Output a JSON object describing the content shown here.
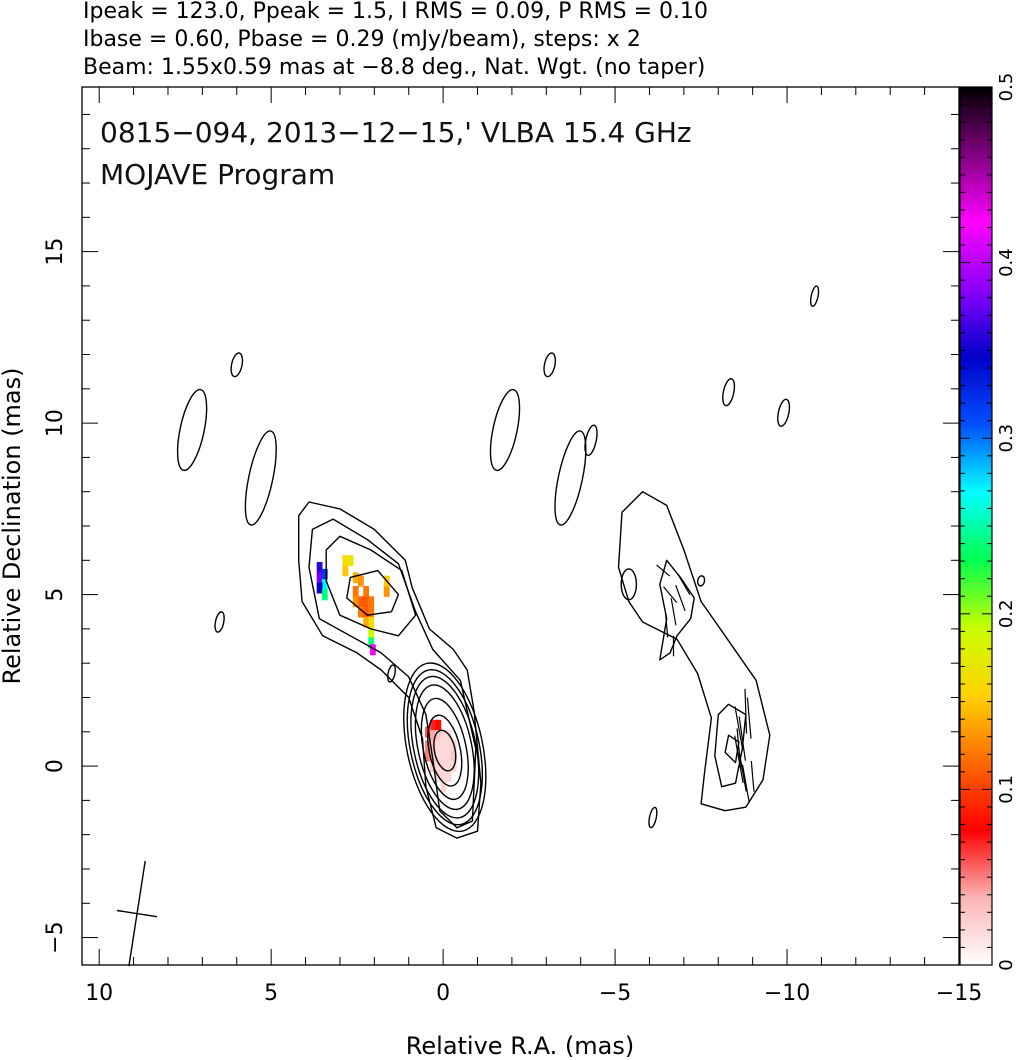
{
  "header": {
    "line1": "Ipeak = 123.0, Ppeak = 1.5, I RMS = 0.09, P RMS = 0.10",
    "line2": "Ibase = 0.60, Pbase = 0.29 (mJy/beam), steps: x 2",
    "line3": "Beam: 1.55x0.59 mas at −8.8 deg., Nat. Wgt. (no taper)"
  },
  "annotation": {
    "source_line": "0815−094, 2013−12−15,' VLBA 15.4 GHz",
    "program_line": "MOJAVE Program"
  },
  "chart_data": {
    "type": "heatmap",
    "xlabel": "Relative R.A. (mas)",
    "ylabel": "Relative Declination (mas)",
    "xlim": [
      10.5,
      -15
    ],
    "ylim": [
      -5.8,
      19.8
    ],
    "xticks": [
      10,
      5,
      0,
      -5,
      -10,
      -15
    ],
    "xtick_labels": [
      "10",
      "5",
      "0",
      "−5",
      "−10",
      "−15"
    ],
    "yticks": [
      -5,
      0,
      5,
      10,
      15
    ],
    "ytick_labels": [
      "−5",
      "0",
      "5",
      "10",
      "15"
    ],
    "colorbar": {
      "range": [
        0,
        0.5
      ],
      "ticks": [
        0,
        0.1,
        0.2,
        0.3,
        0.4,
        0.5
      ],
      "tick_labels": [
        "0",
        "0.1",
        "0.2",
        "0.3",
        "0.4",
        "0.5"
      ],
      "gradient": [
        "#ffffff",
        "#fab4b4",
        "#ff0000",
        "#ff6a00",
        "#ffd200",
        "#c8ff00",
        "#00ff50",
        "#00ffff",
        "#0050ff",
        "#0000c8",
        "#8a00ff",
        "#ff00ff",
        "#800080",
        "#000000"
      ]
    },
    "left_panel": {
      "center_ra": 0,
      "contours_core": [
        {
          "rx": 1.1,
          "ry": 2.5,
          "cx": -0.05,
          "cy": 0.55
        },
        {
          "rx": 1.0,
          "ry": 2.3,
          "cx": -0.05,
          "cy": 0.55
        },
        {
          "rx": 0.9,
          "ry": 2.1,
          "cx": -0.05,
          "cy": 0.55
        },
        {
          "rx": 0.78,
          "ry": 1.85,
          "cx": -0.05,
          "cy": 0.55
        },
        {
          "rx": 0.62,
          "ry": 1.5,
          "cx": -0.05,
          "cy": 0.5
        },
        {
          "rx": 0.45,
          "ry": 1.05,
          "cx": -0.05,
          "cy": 0.45
        },
        {
          "rx": 0.3,
          "ry": 0.6,
          "cx": -0.05,
          "cy": 0.45
        }
      ],
      "outer_contour": [
        [
          -1.0,
          -1.9
        ],
        [
          -1.1,
          -0.5
        ],
        [
          -0.9,
          1.6
        ],
        [
          -0.7,
          2.8
        ],
        [
          -0.3,
          3.4
        ],
        [
          0.4,
          4.0
        ],
        [
          0.9,
          5.2
        ],
        [
          1.1,
          6.0
        ],
        [
          2.0,
          6.9
        ],
        [
          3.0,
          7.5
        ],
        [
          3.9,
          7.7
        ],
        [
          4.2,
          7.3
        ],
        [
          4.2,
          6.0
        ],
        [
          4.1,
          4.8
        ],
        [
          3.5,
          3.8
        ],
        [
          2.5,
          3.3
        ],
        [
          1.8,
          2.8
        ],
        [
          1.0,
          2.0
        ],
        [
          0.6,
          0.8
        ],
        [
          0.5,
          -0.6
        ],
        [
          0.2,
          -1.8
        ],
        [
          -0.4,
          -2.1
        ]
      ],
      "mid_contour": [
        [
          -0.85,
          -1.6
        ],
        [
          -0.95,
          0.5
        ],
        [
          -0.5,
          2.5
        ],
        [
          0.3,
          3.4
        ],
        [
          0.8,
          4.5
        ],
        [
          1.3,
          5.9
        ],
        [
          2.2,
          6.6
        ],
        [
          3.2,
          7.2
        ],
        [
          3.8,
          6.9
        ],
        [
          3.9,
          5.8
        ],
        [
          3.6,
          4.3
        ],
        [
          2.7,
          3.8
        ],
        [
          1.8,
          3.3
        ],
        [
          1.0,
          2.6
        ],
        [
          0.5,
          1.5
        ],
        [
          0.3,
          0.2
        ],
        [
          0.1,
          -1.3
        ],
        [
          -0.4,
          -1.8
        ]
      ],
      "inner_contour": [
        [
          0.8,
          4.4
        ],
        [
          1.2,
          5.7
        ],
        [
          2.1,
          6.3
        ],
        [
          3.0,
          6.7
        ],
        [
          3.4,
          6.3
        ],
        [
          3.4,
          5.4
        ],
        [
          3.0,
          4.4
        ],
        [
          2.1,
          4.0
        ],
        [
          1.3,
          3.8
        ]
      ],
      "innermost_contour": [
        [
          1.3,
          5.0
        ],
        [
          1.9,
          5.7
        ],
        [
          2.7,
          5.5
        ],
        [
          2.8,
          4.9
        ],
        [
          2.2,
          4.4
        ],
        [
          1.5,
          4.5
        ]
      ],
      "islands": [
        [
          6.0,
          11.7,
          0.15,
          0.35
        ],
        [
          7.3,
          9.8,
          0.35,
          1.2
        ],
        [
          5.3,
          8.4,
          0.35,
          1.4
        ],
        [
          6.5,
          4.2,
          0.12,
          0.3
        ],
        [
          1.5,
          2.7,
          0.1,
          0.25
        ]
      ],
      "pol_pixels": [
        {
          "ra": 0.3,
          "dec": 1.2,
          "v": 0.07
        },
        {
          "ra": 0.15,
          "dec": 1.2,
          "v": 0.08
        },
        {
          "ra": 0.45,
          "dec": 1.0,
          "v": 0.06
        },
        {
          "ra": 0.3,
          "dec": 0.9,
          "v": 0.04
        },
        {
          "ra": 0.15,
          "dec": 0.9,
          "v": 0.03
        },
        {
          "ra": 0.0,
          "dec": 0.9,
          "v": 0.02
        },
        {
          "ra": -0.15,
          "dec": 0.9,
          "v": 0.02
        },
        {
          "ra": 0.45,
          "dec": 0.6,
          "v": 0.05
        },
        {
          "ra": 0.3,
          "dec": 0.6,
          "v": 0.03
        },
        {
          "ra": 0.15,
          "dec": 0.6,
          "v": 0.02
        },
        {
          "ra": 0.0,
          "dec": 0.6,
          "v": 0.02
        },
        {
          "ra": -0.15,
          "dec": 0.6,
          "v": 0.02
        },
        {
          "ra": -0.3,
          "dec": 0.6,
          "v": 0.02
        },
        {
          "ra": 0.45,
          "dec": 0.3,
          "v": 0.05
        },
        {
          "ra": 0.3,
          "dec": 0.3,
          "v": 0.03
        },
        {
          "ra": 0.15,
          "dec": 0.3,
          "v": 0.02
        },
        {
          "ra": 0.0,
          "dec": 0.3,
          "v": 0.02
        },
        {
          "ra": -0.15,
          "dec": 0.3,
          "v": 0.02
        },
        {
          "ra": -0.3,
          "dec": 0.3,
          "v": 0.03
        },
        {
          "ra": 0.3,
          "dec": 0.0,
          "v": 0.03
        },
        {
          "ra": 0.15,
          "dec": 0.0,
          "v": 0.02
        },
        {
          "ra": 0.0,
          "dec": 0.0,
          "v": 0.02
        },
        {
          "ra": -0.15,
          "dec": 0.0,
          "v": 0.02
        },
        {
          "ra": -0.3,
          "dec": 0.0,
          "v": 0.02
        },
        {
          "ra": 0.15,
          "dec": -0.3,
          "v": 0.02
        },
        {
          "ra": 0.0,
          "dec": -0.3,
          "v": 0.02
        },
        {
          "ra": -0.15,
          "dec": -0.3,
          "v": 0.02
        },
        {
          "ra": 0.0,
          "dec": -0.6,
          "v": 0.02
        },
        {
          "ra": 2.85,
          "dec": 6.0,
          "v": 0.16
        },
        {
          "ra": 2.7,
          "dec": 6.0,
          "v": 0.17
        },
        {
          "ra": 2.85,
          "dec": 5.7,
          "v": 0.15
        },
        {
          "ra": 2.55,
          "dec": 5.5,
          "v": 0.14
        },
        {
          "ra": 2.4,
          "dec": 5.4,
          "v": 0.13
        },
        {
          "ra": 2.25,
          "dec": 5.1,
          "v": 0.12
        },
        {
          "ra": 2.55,
          "dec": 5.1,
          "v": 0.12
        },
        {
          "ra": 2.4,
          "dec": 4.8,
          "v": 0.11
        },
        {
          "ra": 2.25,
          "dec": 4.8,
          "v": 0.11
        },
        {
          "ra": 2.1,
          "dec": 4.8,
          "v": 0.12
        },
        {
          "ra": 2.55,
          "dec": 4.8,
          "v": 0.13
        },
        {
          "ra": 2.4,
          "dec": 4.5,
          "v": 0.12
        },
        {
          "ra": 2.25,
          "dec": 4.5,
          "v": 0.11
        },
        {
          "ra": 2.1,
          "dec": 4.5,
          "v": 0.12
        },
        {
          "ra": 2.25,
          "dec": 4.2,
          "v": 0.14
        },
        {
          "ra": 2.1,
          "dec": 4.2,
          "v": 0.16
        },
        {
          "ra": 2.1,
          "dec": 3.9,
          "v": 0.19
        },
        {
          "ra": 2.1,
          "dec": 3.6,
          "v": 0.24
        },
        {
          "ra": 2.05,
          "dec": 3.4,
          "v": 0.42
        },
        {
          "ra": 1.65,
          "dec": 5.1,
          "v": 0.13
        },
        {
          "ra": 1.65,
          "dec": 5.4,
          "v": 0.15
        },
        {
          "ra": 3.6,
          "dec": 5.8,
          "v": 0.36
        },
        {
          "ra": 3.6,
          "dec": 5.5,
          "v": 0.38
        },
        {
          "ra": 3.45,
          "dec": 5.6,
          "v": 0.32
        },
        {
          "ra": 3.45,
          "dec": 5.3,
          "v": 0.27
        },
        {
          "ra": 3.6,
          "dec": 5.2,
          "v": 0.35
        },
        {
          "ra": 3.45,
          "dec": 5.0,
          "v": 0.24
        }
      ]
    },
    "right_panel": {
      "offset_ra": -9.0,
      "outer_contour": [
        [
          -7.5,
          -1.1
        ],
        [
          -8.2,
          -1.3
        ],
        [
          -8.8,
          -1.2
        ],
        [
          -9.3,
          -0.4
        ],
        [
          -9.5,
          0.9
        ],
        [
          -9.1,
          2.5
        ],
        [
          -8.2,
          3.8
        ],
        [
          -7.5,
          4.8
        ],
        [
          -7.0,
          6.3
        ],
        [
          -6.5,
          7.6
        ],
        [
          -5.8,
          8.0
        ],
        [
          -5.2,
          7.4
        ],
        [
          -5.1,
          5.8
        ],
        [
          -5.4,
          4.8
        ],
        [
          -5.8,
          4.2
        ],
        [
          -6.8,
          3.7
        ],
        [
          -7.4,
          2.7
        ],
        [
          -7.8,
          1.4
        ],
        [
          -7.6,
          -0.2
        ]
      ],
      "mid_contour": [
        [
          -8.5,
          -0.5
        ],
        [
          -8.7,
          0.5
        ],
        [
          -8.8,
          1.5
        ],
        [
          -8.3,
          1.8
        ],
        [
          -8.0,
          1.5
        ],
        [
          -7.9,
          0.3
        ],
        [
          -8.1,
          -0.6
        ]
      ],
      "inner_contour": [
        [
          -8.5,
          0.1
        ],
        [
          -8.6,
          0.7
        ],
        [
          -8.3,
          0.9
        ],
        [
          -8.2,
          0.4
        ]
      ],
      "upper_contour": [
        [
          -6.3,
          3.1
        ],
        [
          -6.5,
          4.3
        ],
        [
          -6.3,
          5.3
        ],
        [
          -6.5,
          6.0
        ],
        [
          -6.9,
          5.5
        ],
        [
          -7.3,
          4.9
        ],
        [
          -7.2,
          4.3
        ],
        [
          -6.8,
          3.8
        ],
        [
          -6.6,
          3.3
        ]
      ],
      "small_oval": [
        -5.4,
        5.3,
        0.22,
        0.45
      ],
      "islands": [
        [
          -3.1,
          11.7,
          0.15,
          0.35
        ],
        [
          -1.8,
          9.8,
          0.35,
          1.2
        ],
        [
          -3.7,
          8.4,
          0.35,
          1.4
        ],
        [
          -4.3,
          9.5,
          0.15,
          0.45
        ],
        [
          -8.3,
          10.9,
          0.15,
          0.4
        ],
        [
          -9.9,
          10.3,
          0.15,
          0.4
        ],
        [
          -10.8,
          13.7,
          0.1,
          0.3
        ],
        [
          -6.1,
          -1.5,
          0.1,
          0.3
        ],
        [
          -7.5,
          5.4,
          0.1,
          0.15
        ]
      ],
      "vectors": [
        {
          "ra": -8.7,
          "dec": -0.1,
          "len": 1.3,
          "ang": 100
        },
        {
          "ra": -8.6,
          "dec": 0.2,
          "len": 1.4,
          "ang": 100
        },
        {
          "ra": -8.6,
          "dec": 0.5,
          "len": 1.2,
          "ang": 95
        },
        {
          "ra": -8.7,
          "dec": 0.8,
          "len": 1.3,
          "ang": 98
        },
        {
          "ra": -8.6,
          "dec": 1.1,
          "len": 1.3,
          "ang": 100
        },
        {
          "ra": -8.9,
          "dec": 1.4,
          "len": 1.2,
          "ang": 95
        },
        {
          "ra": -8.8,
          "dec": 1.6,
          "len": 1.3,
          "ang": 92
        },
        {
          "ra": -8.8,
          "dec": -0.5,
          "len": 1.1,
          "ang": 100
        },
        {
          "ra": -9.0,
          "dec": -0.3,
          "len": 0.9,
          "ang": 95
        },
        {
          "ra": -6.5,
          "dec": 4.1,
          "len": 0.7,
          "ang": 95
        },
        {
          "ra": -6.7,
          "dec": 4.5,
          "len": 0.8,
          "ang": 100
        },
        {
          "ra": -6.9,
          "dec": 4.9,
          "len": 0.8,
          "ang": 110
        },
        {
          "ra": -7.0,
          "dec": 5.3,
          "len": 0.7,
          "ang": 120
        },
        {
          "ra": -6.6,
          "dec": 5.0,
          "len": 0.6,
          "ang": 130
        },
        {
          "ra": -6.4,
          "dec": 5.7,
          "len": 0.5,
          "ang": 140
        },
        {
          "ra": -6.7,
          "dec": 3.5,
          "len": 0.6,
          "ang": 90
        }
      ]
    },
    "beam": {
      "ra": 8.9,
      "dec": -4.3,
      "major": 1.55,
      "minor": 0.59,
      "pa": -8.8
    }
  }
}
